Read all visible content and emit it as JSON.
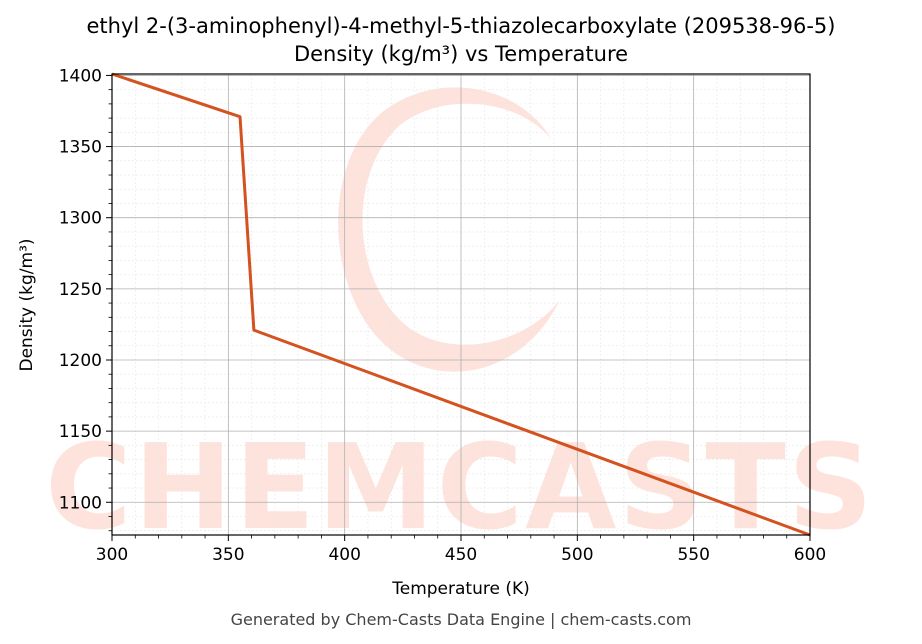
{
  "chart_data": {
    "type": "line",
    "title": "ethyl 2-(3-aminophenyl)-4-methyl-5-thiazolecarboxylate (209538-96-5)",
    "subtitle": "Density (kg/m³) vs Temperature",
    "xlabel": "Temperature (K)",
    "ylabel": "Density (kg/m³)",
    "xlim": [
      300,
      600
    ],
    "ylim": [
      1077,
      1401
    ],
    "x_ticks": [
      300,
      350,
      400,
      450,
      500,
      550,
      600
    ],
    "y_ticks": [
      1100,
      1150,
      1200,
      1250,
      1300,
      1350,
      1400
    ],
    "x_tick_labels": [
      "300",
      "350",
      "400",
      "450",
      "500",
      "550",
      "600"
    ],
    "y_tick_labels": [
      "1100",
      "1150",
      "1200",
      "1250",
      "1300",
      "1350",
      "1400"
    ],
    "grid": true,
    "minor_grid": true,
    "series": [
      {
        "color": "#d4521f",
        "x": [
          300,
          355,
          361,
          600
        ],
        "y": [
          1401,
          1371,
          1221,
          1077
        ]
      }
    ]
  },
  "watermark": {
    "text": "CHEMCASTS",
    "color": "#fde3dc"
  },
  "footer": "Generated by Chem-Casts Data Engine | chem-casts.com"
}
